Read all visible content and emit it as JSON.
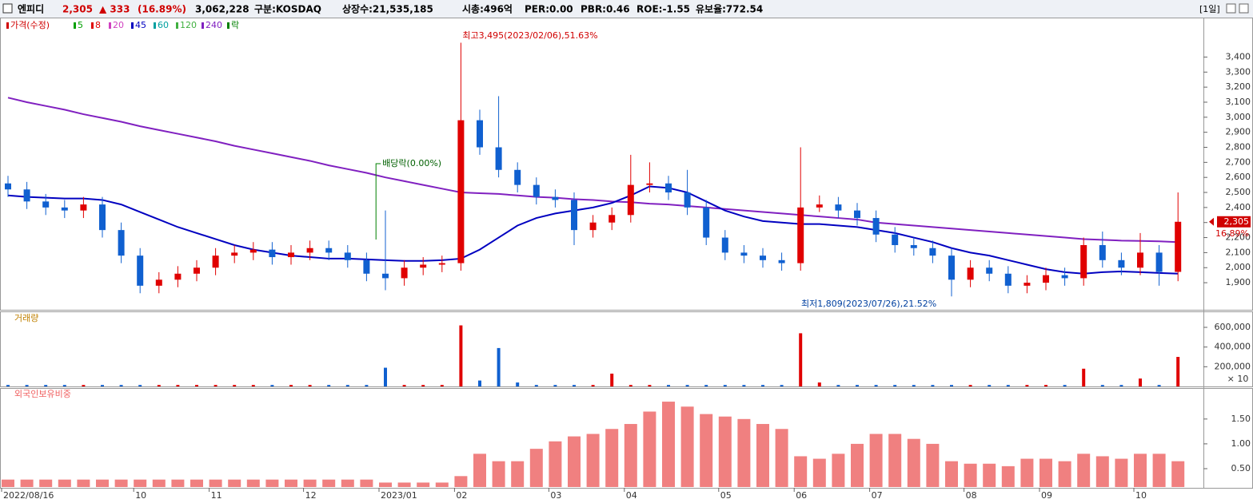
{
  "header": {
    "name": "엔피디",
    "price": "2,305",
    "change": "▲ 333",
    "change_pct": "(16.89%)",
    "volume": "3,062,228",
    "market": "구분:KOSDAQ",
    "listed": "상장수:21,535,185",
    "cap": "시총:496억",
    "per": "PER:0.00",
    "pbr": "PBR:0.46",
    "roe": "ROE:-1.55",
    "reserve": "유보율:772.54",
    "period": "[1일]"
  },
  "chart_data": [
    {
      "type": "candlestick",
      "legend": [
        {
          "name": "가격(수정)",
          "color": "#d00000"
        },
        {
          "name": "5",
          "color": "#00a000"
        },
        {
          "name": "8",
          "color": "#e00000"
        },
        {
          "name": "20",
          "color": "#d040c0"
        },
        {
          "name": "45",
          "color": "#0000c0"
        },
        {
          "name": "60",
          "color": "#00a0a0"
        },
        {
          "name": "120",
          "color": "#40b040"
        },
        {
          "name": "240",
          "color": "#8020c0"
        },
        {
          "name": "락",
          "color": "#008000"
        }
      ],
      "categories": [
        "2022/08/16",
        null,
        null,
        null,
        null,
        null,
        null,
        "10",
        null,
        null,
        null,
        "11",
        null,
        null,
        null,
        null,
        "12",
        null,
        null,
        null,
        "2023/01",
        null,
        null,
        null,
        "02",
        null,
        null,
        null,
        null,
        "03",
        null,
        null,
        null,
        "04",
        null,
        null,
        null,
        null,
        "05",
        null,
        null,
        null,
        "06",
        null,
        null,
        null,
        "07",
        null,
        null,
        null,
        null,
        "08",
        null,
        null,
        null,
        "09",
        null,
        null,
        null,
        null,
        "10",
        null,
        null
      ],
      "open": [
        2560,
        2520,
        2440,
        2400,
        2380,
        2420,
        2250,
        2080,
        1880,
        1920,
        1960,
        2000,
        2080,
        2100,
        2120,
        2070,
        2100,
        2130,
        2100,
        2050,
        1960,
        1930,
        2000,
        2020,
        2030,
        2980,
        2800,
        2650,
        2550,
        2470,
        2450,
        2250,
        2300,
        2350,
        2550,
        2560,
        2500,
        2400,
        2200,
        2100,
        2080,
        2050,
        2030,
        2400,
        2420,
        2380,
        2330,
        2220,
        2150,
        2130,
        2080,
        1920,
        2000,
        1960,
        1880,
        1900,
        1950,
        1930,
        2150,
        2050,
        2000,
        2100,
        1972
      ],
      "high": [
        2610,
        2570,
        2490,
        2450,
        2470,
        2470,
        2300,
        2130,
        1970,
        2010,
        2050,
        2130,
        2150,
        2170,
        2170,
        2150,
        2180,
        2180,
        2150,
        2100,
        2380,
        2050,
        2070,
        2080,
        3495,
        3050,
        3140,
        2700,
        2600,
        2520,
        2500,
        2350,
        2400,
        2750,
        2700,
        2610,
        2650,
        2450,
        2250,
        2150,
        2130,
        2100,
        2800,
        2480,
        2470,
        2430,
        2380,
        2270,
        2200,
        2180,
        2130,
        2050,
        2050,
        2010,
        1950,
        2000,
        2000,
        2200,
        2240,
        2100,
        2230,
        2150,
        2500
      ],
      "low": [
        2470,
        2390,
        2350,
        2330,
        2330,
        2200,
        2030,
        1830,
        1830,
        1870,
        1910,
        1950,
        2030,
        2050,
        2020,
        2020,
        2050,
        2050,
        2000,
        1910,
        1850,
        1880,
        1950,
        1970,
        1980,
        2750,
        2600,
        2500,
        2420,
        2400,
        2150,
        2200,
        2250,
        2300,
        2500,
        2450,
        2350,
        2150,
        2050,
        2030,
        2000,
        1980,
        1980,
        2370,
        2330,
        2280,
        2170,
        2100,
        2080,
        2030,
        1809,
        1870,
        1910,
        1830,
        1830,
        1850,
        1880,
        1880,
        2000,
        1950,
        1950,
        1880,
        1910
      ],
      "close": [
        2520,
        2440,
        2400,
        2380,
        2420,
        2250,
        2080,
        1880,
        1920,
        1960,
        2000,
        2080,
        2100,
        2120,
        2070,
        2100,
        2130,
        2100,
        2050,
        1960,
        1930,
        2000,
        2020,
        2030,
        2980,
        2800,
        2650,
        2550,
        2470,
        2450,
        2250,
        2300,
        2350,
        2550,
        2560,
        2500,
        2400,
        2200,
        2100,
        2080,
        2050,
        2030,
        2400,
        2420,
        2380,
        2330,
        2220,
        2150,
        2130,
        2080,
        1920,
        2000,
        1960,
        1880,
        1900,
        1950,
        1930,
        2150,
        2050,
        2000,
        2100,
        1972,
        2305
      ],
      "series": [
        {
          "name": "240",
          "color": "#8020c0",
          "values": [
            3130,
            3100,
            3075,
            3050,
            3020,
            2995,
            2970,
            2940,
            2915,
            2890,
            2865,
            2840,
            2810,
            2785,
            2760,
            2735,
            2710,
            2680,
            2655,
            2630,
            2600,
            2575,
            2550,
            2525,
            2500,
            2495,
            2490,
            2480,
            2470,
            2465,
            2455,
            2450,
            2440,
            2435,
            2425,
            2420,
            2410,
            2400,
            2390,
            2380,
            2370,
            2360,
            2350,
            2340,
            2330,
            2320,
            2300,
            2290,
            2280,
            2270,
            2260,
            2250,
            2240,
            2230,
            2220,
            2210,
            2200,
            2190,
            2185,
            2180,
            2178,
            2175,
            2170
          ]
        },
        {
          "name": "45",
          "color": "#0000c0",
          "values": [
            2480,
            2470,
            2465,
            2460,
            2460,
            2450,
            2420,
            2370,
            2320,
            2270,
            2230,
            2190,
            2150,
            2120,
            2100,
            2080,
            2070,
            2060,
            2060,
            2055,
            2050,
            2045,
            2045,
            2050,
            2060,
            2120,
            2200,
            2280,
            2330,
            2360,
            2380,
            2400,
            2430,
            2480,
            2540,
            2530,
            2500,
            2440,
            2380,
            2340,
            2310,
            2300,
            2290,
            2290,
            2280,
            2270,
            2250,
            2230,
            2200,
            2170,
            2130,
            2100,
            2080,
            2050,
            2020,
            1990,
            1970,
            1960,
            1970,
            1975,
            1970,
            1965,
            1960
          ]
        }
      ],
      "up_color": "#e00000",
      "down_color": "#1060d0",
      "ylim": [
        1720,
        3620
      ],
      "yticks": [
        {
          "value": 1900,
          "label": "1,900"
        },
        {
          "value": 2000,
          "label": "2,000"
        },
        {
          "value": 2100,
          "label": "2,100"
        },
        {
          "value": 2200,
          "label": "2,200"
        },
        {
          "value": 2300,
          "label": "2,300"
        },
        {
          "value": 2400,
          "label": "2,400"
        },
        {
          "value": 2500,
          "label": "2,500"
        },
        {
          "value": 2600,
          "label": "2,600"
        },
        {
          "value": 2700,
          "label": "2,700"
        },
        {
          "value": 2800,
          "label": "2,800"
        },
        {
          "value": 2900,
          "label": "2,900"
        },
        {
          "value": 3000,
          "label": "3,000"
        },
        {
          "value": 3100,
          "label": "3,100"
        },
        {
          "value": 3200,
          "label": "3,200"
        },
        {
          "value": 3300,
          "label": "3,300"
        },
        {
          "value": 3400,
          "label": "3,400"
        }
      ],
      "annotations": {
        "high": "최고3,495(2023/02/06),51.63%",
        "low": "최저1,809(2023/07/26),21.52%",
        "dividend": "배당락(0.00%)",
        "last_price": "2,305",
        "last_pct": "16.89%"
      }
    },
    {
      "type": "bar",
      "title": "거래량",
      "values": [
        15000,
        15000,
        15000,
        15000,
        15000,
        15000,
        15000,
        15000,
        15000,
        15000,
        15000,
        15000,
        15000,
        15000,
        15000,
        15000,
        15000,
        15000,
        15000,
        15000,
        190000,
        15000,
        15000,
        15000,
        620000,
        60000,
        390000,
        40000,
        15000,
        15000,
        15000,
        15000,
        130000,
        15000,
        15000,
        15000,
        15000,
        15000,
        15000,
        15000,
        15000,
        15000,
        540000,
        40000,
        15000,
        15000,
        15000,
        15000,
        15000,
        15000,
        15000,
        15000,
        15000,
        15000,
        15000,
        15000,
        15000,
        180000,
        15000,
        15000,
        80000,
        15000,
        300000
      ],
      "ylim": [
        0,
        746000
      ],
      "yticks": [
        {
          "value": 200000,
          "label": "200,000"
        },
        {
          "value": 400000,
          "label": "400,000"
        },
        {
          "value": 600000,
          "label": "600,000"
        }
      ],
      "unit": "× 10"
    },
    {
      "type": "bar",
      "title": "외국인보유비중",
      "color": "#f08080",
      "values": [
        0.28,
        0.28,
        0.28,
        0.28,
        0.28,
        0.28,
        0.28,
        0.28,
        0.28,
        0.28,
        0.28,
        0.28,
        0.28,
        0.28,
        0.28,
        0.28,
        0.28,
        0.28,
        0.28,
        0.28,
        0.22,
        0.22,
        0.22,
        0.22,
        0.35,
        0.8,
        0.65,
        0.65,
        0.9,
        1.05,
        1.15,
        1.2,
        1.3,
        1.4,
        1.65,
        1.85,
        1.75,
        1.6,
        1.55,
        1.5,
        1.4,
        1.3,
        0.75,
        0.7,
        0.8,
        1.0,
        1.2,
        1.2,
        1.1,
        1.0,
        0.65,
        0.6,
        0.6,
        0.55,
        0.7,
        0.7,
        0.65,
        0.8,
        0.75,
        0.7,
        0.8,
        0.8,
        0.65
      ],
      "ylim": [
        0.13,
        2.06
      ],
      "yticks": [
        {
          "value": 0.5,
          "label": "0.50"
        },
        {
          "value": 1.0,
          "label": "1.00"
        },
        {
          "value": 1.5,
          "label": "1.50"
        }
      ]
    }
  ]
}
